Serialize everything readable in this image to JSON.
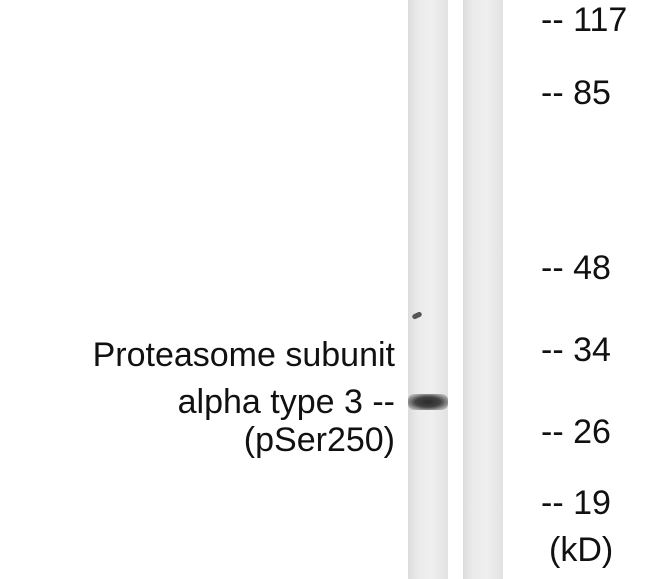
{
  "protein_label": {
    "lines": [
      "Proteasome subunit",
      "alpha type 3 --",
      "(pSer250)"
    ]
  },
  "markers": [
    "-- 117",
    "-- 85",
    "-- 48",
    "-- 34",
    "-- 26",
    "-- 19"
  ],
  "unit": "(kD)"
}
